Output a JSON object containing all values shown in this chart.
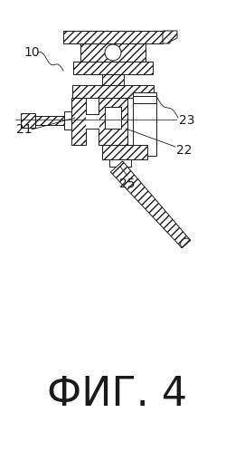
{
  "title": "ФИГ. 4",
  "title_fontsize": 32,
  "bg_color": "#ffffff",
  "line_color": "#1a1a1a",
  "label_fontsize": 10,
  "fig_width": 2.6,
  "fig_height": 4.98,
  "dpi": 100
}
